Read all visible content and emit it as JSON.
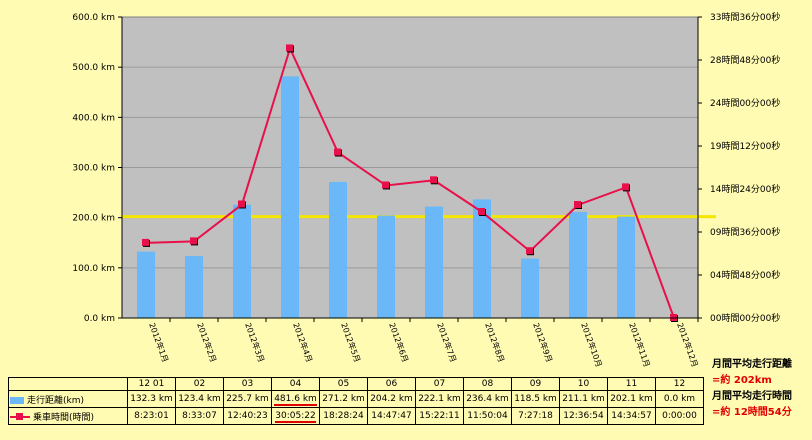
{
  "chart_data": {
    "type": "bar",
    "categories": [
      "2012年1月",
      "2012年2月",
      "2012年3月",
      "2012年4月",
      "2012年5月",
      "2012年6月",
      "2012年7月",
      "2012年8月",
      "2012年9月",
      "2012年10月",
      "2012年11月",
      "2012年12月"
    ],
    "ylim": [
      0,
      600
    ],
    "y2lim": [
      0,
      2016
    ],
    "y_ticks": [
      "600.0 km",
      "500.0 km",
      "400.0 km",
      "300.0 km",
      "200.0 km",
      "100.0 km",
      "0.0 km"
    ],
    "y2_ticks": [
      "33時間36分00秒",
      "28時間48分00秒",
      "24時間00分00秒",
      "19時間12分00秒",
      "14時間24分00秒",
      "09時間36分00秒",
      "04時間48分00秒",
      "00時間00分00秒"
    ],
    "average_line": 202,
    "series": [
      {
        "name": "走行距離(km)",
        "values": [
          132.3,
          123.4,
          225.7,
          481.6,
          271.2,
          204.2,
          222.1,
          236.4,
          118.5,
          211.1,
          202.1,
          0.0
        ],
        "labels": [
          "132.3 km",
          "123.4 km",
          "225.7 km",
          "481.6 km",
          "271.2 km",
          "204.2 km",
          "222.1 km",
          "236.4 km",
          "118.5 km",
          "211.1 km",
          "202.1 km",
          "0.0 km"
        ],
        "color": "#6ab8f8"
      },
      {
        "name": "乗車時間(時間)",
        "values_minutes": [
          503.0,
          513.1,
          760.4,
          1805.4,
          1108.4,
          887.8,
          922.2,
          710.1,
          447.3,
          756.9,
          874.9,
          0.0
        ],
        "labels": [
          "8:23:01",
          "8:33:07",
          "12:40:23",
          "30:05:22",
          "18:28:24",
          "14:47:47",
          "15:22:11",
          "11:50:04",
          "7:27:18",
          "12:36:54",
          "14:34:57",
          "0:00:00"
        ],
        "color": "#e8104a"
      }
    ],
    "grid": true,
    "average_line_color": "#f5e600"
  },
  "table": {
    "months": [
      "12 01",
      "02",
      "03",
      "04",
      "05",
      "06",
      "07",
      "08",
      "09",
      "10",
      "11",
      "12"
    ]
  },
  "summary": {
    "distance_label": "月間平均走行距離",
    "distance_value": "=約 202km",
    "time_label": "月間平均走行時間",
    "time_value": "=約 12時間54分"
  }
}
